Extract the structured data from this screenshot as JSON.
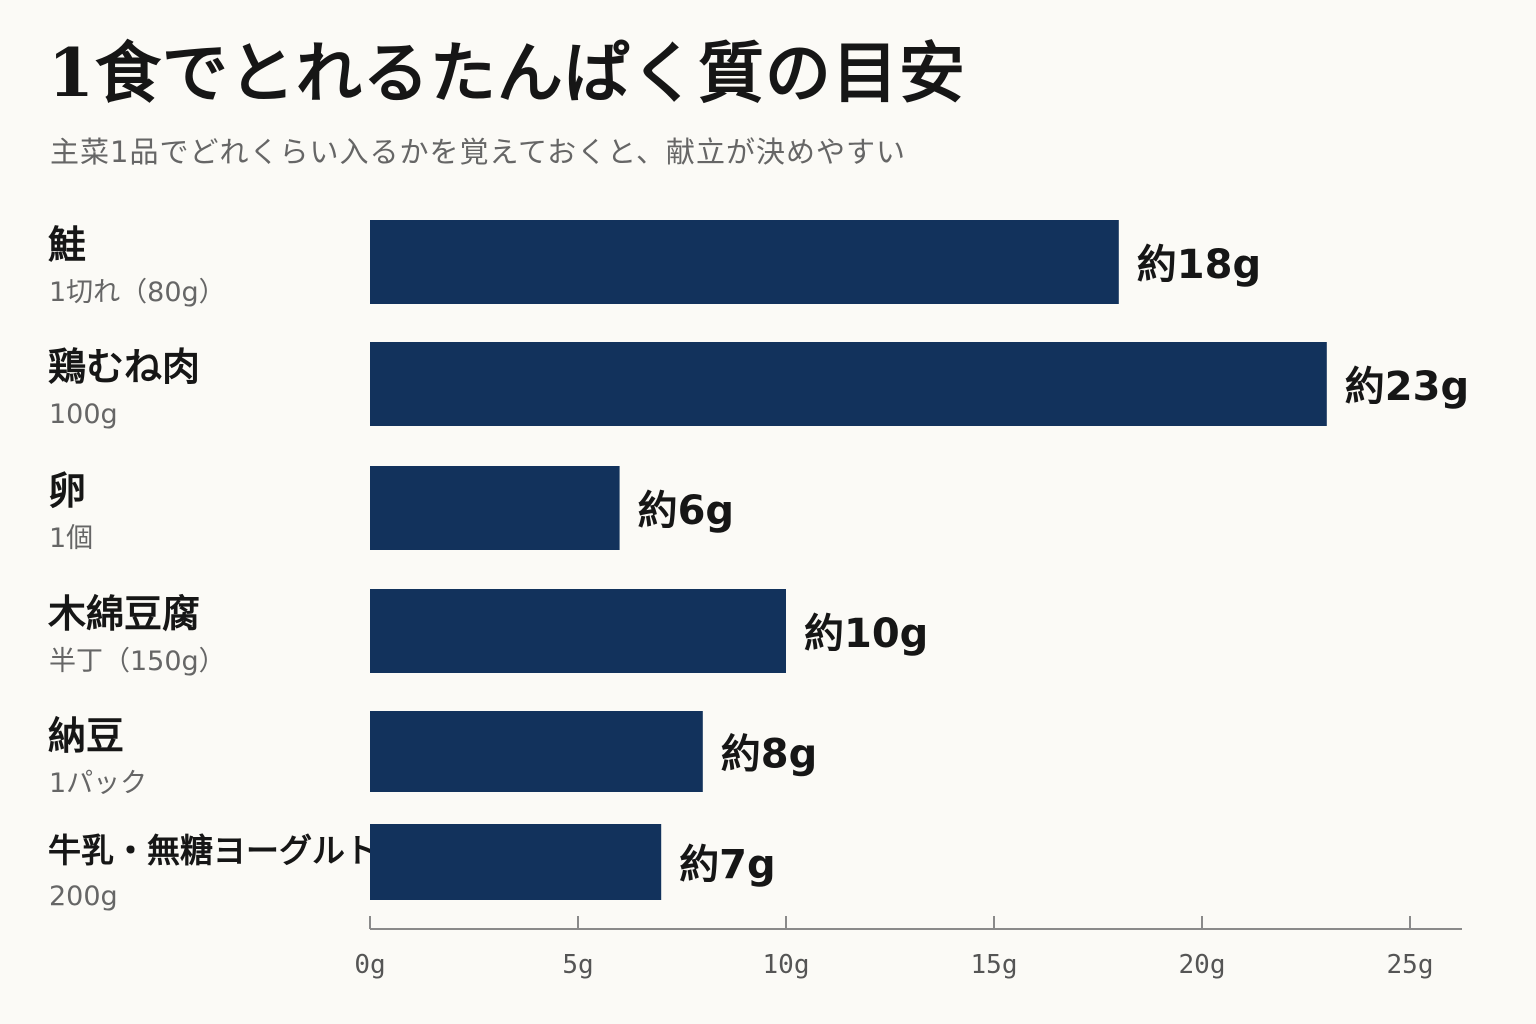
{
  "header": {
    "title": "1食でとれるたんぱく質の目安",
    "subtitle": "主菜1品でどれくらい入るかを覚えておくと、献立が決めやすい"
  },
  "colors": {
    "bar": "#12325c",
    "axis": "#8a8a8a",
    "background": "#fbfaf6"
  },
  "chart_data": {
    "type": "bar",
    "orientation": "horizontal",
    "unit": "g",
    "categories": [
      "鮭",
      "鶏むね肉",
      "卵",
      "木綿豆腐",
      "納豆",
      "牛乳・無糖ヨーグルト"
    ],
    "portions": [
      "1切れ（80g）",
      "100g",
      "1個",
      "半丁（150g）",
      "1パック",
      "200g"
    ],
    "values": [
      18,
      23,
      6,
      10,
      8,
      7
    ],
    "value_labels": [
      "約18g",
      "約23g",
      "約6g",
      "約10g",
      "約8g",
      "約7g"
    ],
    "xlim": [
      0,
      25
    ],
    "x_ticks": [
      0,
      5,
      10,
      15,
      20,
      25
    ],
    "x_tick_labels": [
      "0g",
      "5g",
      "10g",
      "15g",
      "20g",
      "25g"
    ],
    "grid": false,
    "legend": "none"
  }
}
